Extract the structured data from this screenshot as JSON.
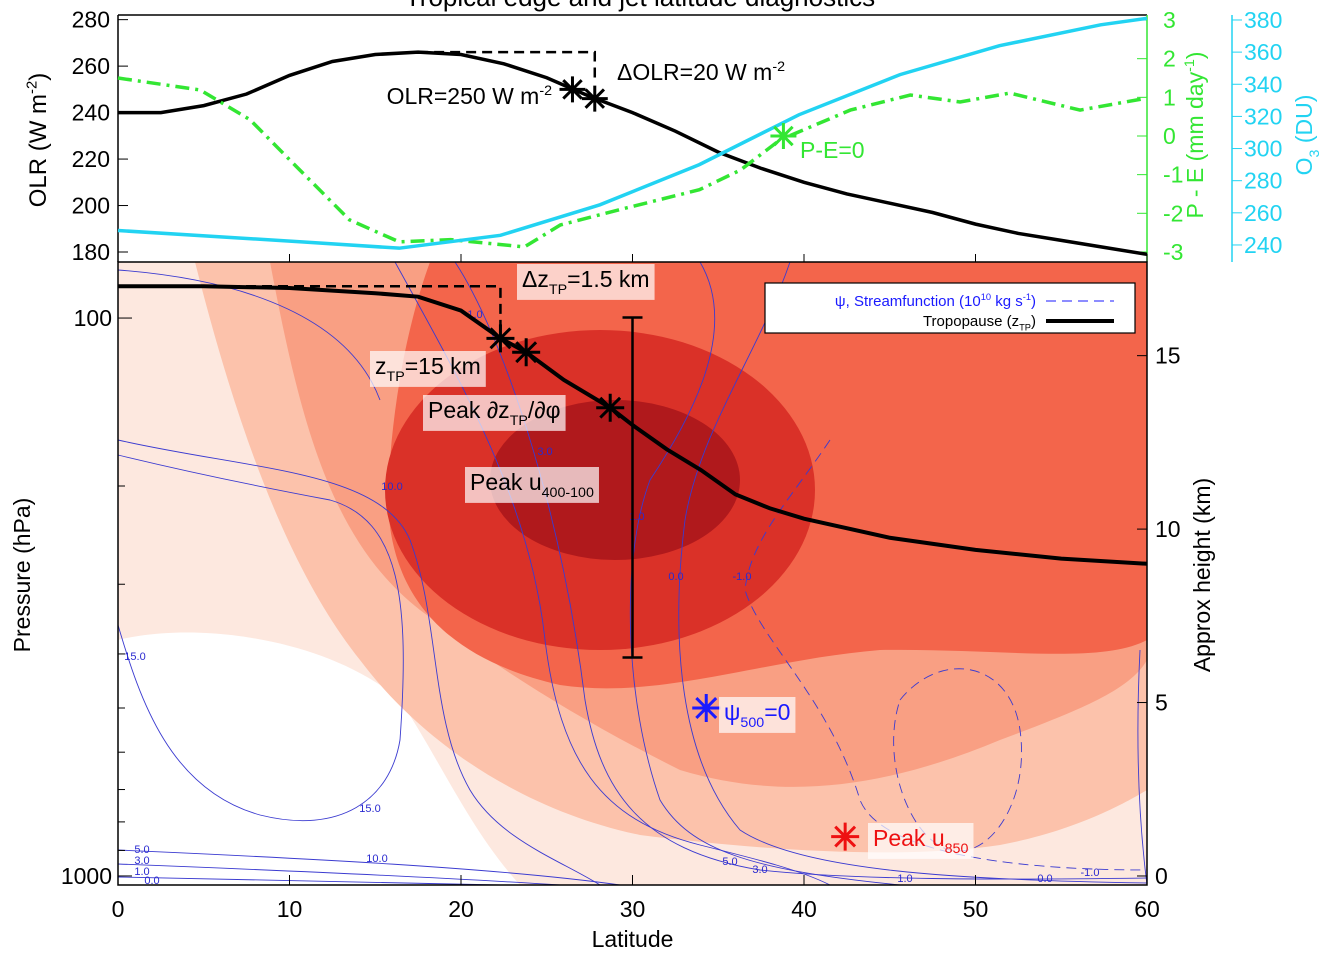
{
  "chart_data": [
    {
      "type": "line",
      "title": "Tropical edge and jet latitude diagnostics",
      "xlim": [
        0,
        60
      ],
      "xticks": [
        0,
        10,
        20,
        30,
        40,
        50,
        60
      ],
      "ylim": [
        175.7,
        282
      ],
      "yticks": [
        180,
        200,
        220,
        240,
        260,
        280
      ],
      "y2lim": [
        -3.26,
        3.13
      ],
      "y2ticks": [
        -3,
        -2,
        -1,
        0,
        1,
        2,
        3
      ],
      "y3lim": [
        229.4,
        383.1
      ],
      "y3ticks": [
        240,
        260,
        280,
        300,
        320,
        340,
        360,
        380
      ],
      "ylabel": [
        {
          "t": "OLR (W m"
        },
        {
          "sup": "-2"
        },
        {
          "t": ")"
        }
      ],
      "y2label": [
        {
          "t": "P - E (mm day"
        },
        {
          "sup": "-1"
        },
        {
          "t": ")"
        }
      ],
      "y3label": [
        {
          "t": "O"
        },
        {
          "sub": "3"
        },
        {
          "t": " (DU)"
        }
      ],
      "series": [
        {
          "color": "#000000",
          "style": "solid",
          "x": [
            0,
            2.5,
            5,
            7.5,
            10,
            12.5,
            15,
            17.5,
            20,
            22.5,
            25,
            27.5,
            30,
            32.5,
            35,
            37.5,
            40,
            42.5,
            45,
            47.5,
            50,
            52.5,
            55,
            57.5,
            60
          ],
          "values": [
            240,
            240,
            243,
            248,
            256,
            262,
            265,
            266,
            265,
            261,
            255,
            247,
            240,
            232,
            223,
            216,
            210,
            205,
            201,
            197,
            192,
            188,
            185,
            182,
            179
          ]
        },
        {
          "color": "#33e633",
          "style": "dashdot",
          "axis": "y2",
          "x": [
            0,
            4.8,
            7.7,
            10.6,
            13.5,
            16.4,
            19.4,
            23.7,
            25.8,
            29.3,
            33.9,
            36.3,
            38.6,
            42.7,
            46.2,
            49.1,
            52,
            56.1,
            60
          ],
          "values": [
            1.5,
            1.19,
            0.42,
            -0.88,
            -2.17,
            -2.74,
            -2.68,
            -2.87,
            -2.3,
            -1.9,
            -1.39,
            -0.88,
            -0.1,
            0.67,
            1.06,
            0.88,
            1.11,
            0.67,
            0.98
          ]
        },
        {
          "color": "#22d3f2",
          "style": "solid",
          "axis": "y3",
          "x": [
            0,
            10.6,
            16.4,
            22.3,
            28.1,
            33.9,
            39.7,
            45.6,
            51.4,
            57.3,
            60
          ],
          "values": [
            249,
            242,
            238,
            246,
            265,
            290,
            321,
            346,
            364,
            377,
            381
          ]
        }
      ],
      "markers": [
        {
          "x": 26.5,
          "y": 250,
          "color": "#000000"
        },
        {
          "x": 27.8,
          "y": 246,
          "color": "#000000"
        },
        {
          "x": 38.8,
          "y": 0,
          "axis": "y2",
          "color": "#33e633"
        }
      ],
      "annotations": [
        [
          {
            "t": "OLR=250 W m"
          },
          {
            "sup": "-2"
          }
        ],
        [
          {
            "t": "ΔOLR=20 W m"
          },
          {
            "sup": "-2"
          }
        ],
        [
          {
            "t": "P-E=0"
          }
        ]
      ]
    },
    {
      "type": "contour",
      "xlabel": "Latitude",
      "xlim": [
        0,
        60
      ],
      "xticks": [
        0,
        10,
        20,
        30,
        40,
        50,
        60
      ],
      "ylabel": "Pressure (hPa)",
      "log_y": true,
      "ylim": [
        1038,
        79.35
      ],
      "yticks": [
        100,
        1000
      ],
      "yminor": [
        200,
        300,
        400,
        500,
        600,
        700,
        800,
        900
      ],
      "y2label": "Approx height (km)",
      "y2lim": [
        -0.26,
        17.7
      ],
      "y2ticks": [
        0,
        5,
        10,
        15
      ],
      "series": [
        {
          "color": "#000000",
          "axis": "y2",
          "x": [
            0,
            5,
            10,
            15,
            17.5,
            20,
            22.3,
            23.8,
            26,
            28.7,
            30,
            32,
            34,
            36,
            38,
            40,
            45,
            50,
            55,
            60
          ],
          "values": [
            17.0,
            17.0,
            16.95,
            16.8,
            16.7,
            16.3,
            15.5,
            15.1,
            14.3,
            13.5,
            13.0,
            12.3,
            11.7,
            11.0,
            10.6,
            10.3,
            9.75,
            9.4,
            9.15,
            9.0
          ]
        }
      ],
      "markers": [
        {
          "x": 22.3,
          "y": 15.5,
          "axis": "y2",
          "color": "#000000"
        },
        {
          "x": 23.8,
          "y": 15.1,
          "axis": "y2",
          "color": "#000000"
        },
        {
          "x": 28.7,
          "y": 13.5,
          "axis": "y2",
          "color": "#000000"
        },
        {
          "x": 34.3,
          "y": 500,
          "color": "#1a1aff"
        },
        {
          "x": 42.4,
          "y": 850,
          "color": "#ee1111"
        }
      ],
      "range_bar": {
        "x": 30,
        "low": 6.3,
        "high": 16.1,
        "axis": "y2"
      },
      "annotations": [
        {
          "color": "#000000",
          "parts": [
            {
              "t": "Δz"
            },
            {
              "sub": "TP"
            },
            {
              "t": "=1.5 km"
            }
          ]
        },
        {
          "color": "#000000",
          "parts": [
            {
              "t": "z"
            },
            {
              "sub": "TP"
            },
            {
              "t": "=15 km"
            }
          ]
        },
        {
          "color": "#000000",
          "parts": [
            {
              "t": "Peak ∂z"
            },
            {
              "sub": "TP"
            },
            {
              "t": "/∂φ"
            }
          ]
        },
        {
          "color": "#000000",
          "parts": [
            {
              "t": "Peak u"
            },
            {
              "sub": "400-100"
            }
          ]
        },
        {
          "color": "#1a1aff",
          "parts": [
            {
              "t": "ψ"
            },
            {
              "sub": "500"
            },
            {
              "t": "=0"
            }
          ]
        },
        {
          "color": "#ee1111",
          "parts": [
            {
              "t": "Peak u"
            },
            {
              "sub": "850"
            }
          ]
        }
      ],
      "legend": [
        {
          "color": "#1a1aff",
          "style": "dashed",
          "parts": [
            {
              "t": "ψ, Streamfunction (10"
            },
            {
              "sup": "10"
            },
            {
              "t": " kg s"
            },
            {
              "sup": "-1"
            },
            {
              "t": ")"
            }
          ]
        },
        {
          "color": "#000000",
          "style": "solid",
          "parts": [
            {
              "t": "Tropopause (z"
            },
            {
              "sub": "TP"
            },
            {
              "t": ")"
            }
          ]
        }
      ],
      "contour_labels": [
        "1.0",
        "3.0",
        "10.0",
        "1.0",
        "0.0",
        "-1.0",
        "15.0",
        "15.0",
        "10.0",
        "5.0",
        "3.0",
        "1.0",
        "0.0",
        "5.0",
        "3.0",
        "1.0",
        "0.0",
        "-1.0"
      ]
    }
  ]
}
